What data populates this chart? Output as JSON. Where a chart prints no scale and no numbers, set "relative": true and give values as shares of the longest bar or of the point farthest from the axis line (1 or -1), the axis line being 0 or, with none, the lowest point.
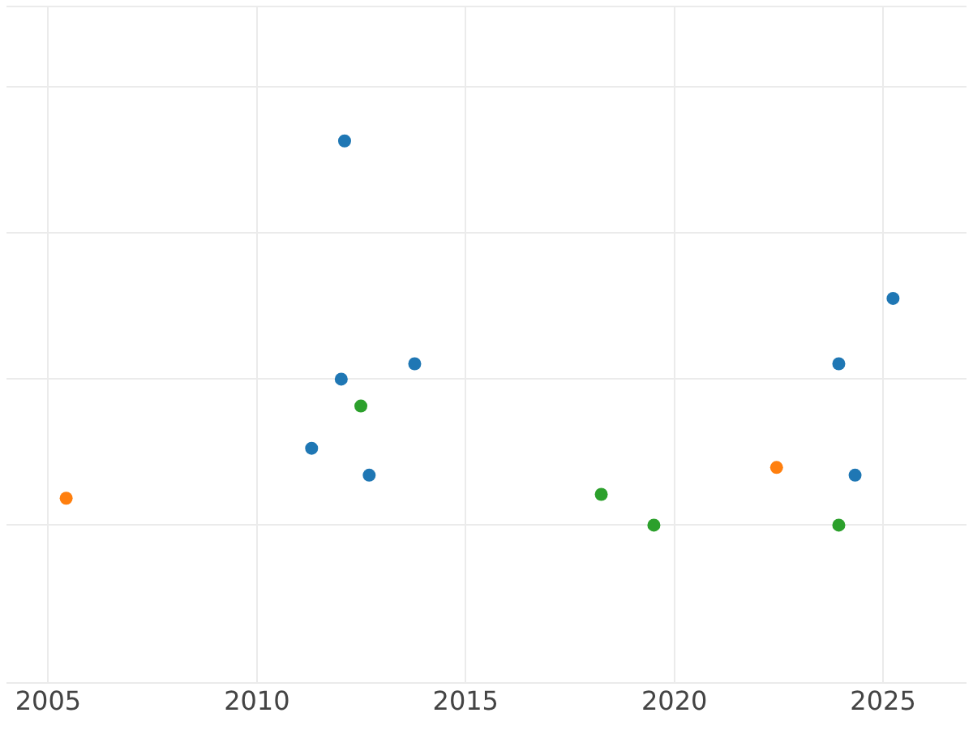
{
  "chart_data": {
    "type": "scatter",
    "relative": true,
    "xlim": [
      2004,
      2027
    ],
    "xticks": [
      2005,
      2010,
      2015,
      2020,
      2025
    ],
    "grid": true,
    "legend": false,
    "marker": "circle",
    "series": [
      {
        "color": "#1f77b4",
        "x": [
          2012.1,
          2012.02,
          2013.78,
          2011.31,
          2012.69,
          2023.94,
          2025.24,
          2024.33
        ],
        "values": [
          1,
          0.38,
          0.42,
          0.2,
          0.13,
          0.42,
          0.59,
          0.13
        ]
      },
      {
        "color": "#ff7f0e",
        "x": [
          2005.43,
          2022.45
        ],
        "values": [
          0.07,
          0.15
        ]
      },
      {
        "color": "#2ca02c",
        "x": [
          2012.49,
          2018.25,
          2019.51,
          2023.94
        ],
        "values": [
          0.31,
          0.08,
          0,
          0
        ]
      }
    ]
  }
}
